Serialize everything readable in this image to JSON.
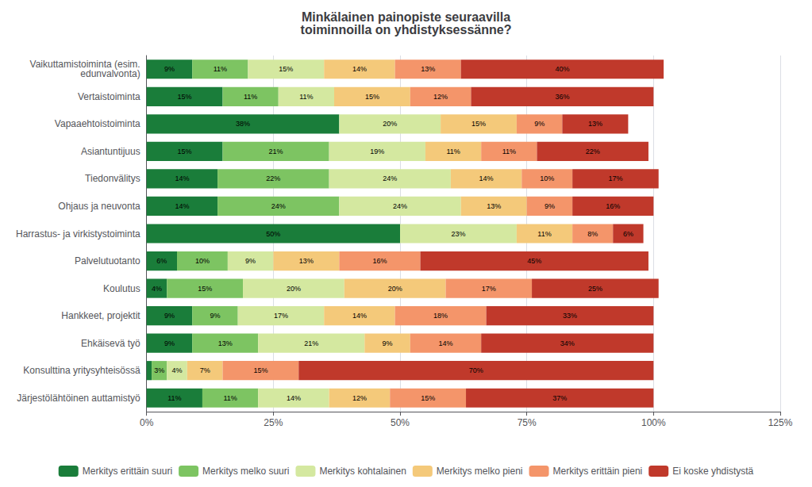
{
  "chart_data": {
    "type": "bar",
    "orientation": "horizontal",
    "stacked": true,
    "data_labels": true,
    "grid": true,
    "legend": "bottom",
    "title": "Minkälainen painopiste seuraavilla\ntoiminnoilla on yhdistyksessänne?",
    "categories": [
      "Järjestölähtöinen auttamistyö",
      "Konsulttina yritysyhteisössä",
      "Ehkäisevä työ",
      "Hankkeet, projektit",
      "Koulutus",
      "Palvelutuotanto",
      "Harrastus- ja virkistystoiminta",
      "Ohjaus ja neuvonta",
      "Tiedonvälitys",
      "Asiantuntijuus",
      "Vapaaehtoistoiminta",
      "Vertaistoiminta",
      "Vaikuttamistoiminta (esim.\n edunvalvonta)"
    ],
    "series": [
      {
        "name": "Merkitys erittäin suuri",
        "color": "#1a7d3a",
        "values": [
          11,
          1,
          9,
          9,
          4,
          6,
          50,
          14,
          14,
          15,
          38,
          15,
          9
        ],
        "value_labels": [
          "11%",
          null,
          "9%",
          "9%",
          "4%",
          "6%",
          "50%",
          "14%",
          "14%",
          "15%",
          "38%",
          "15%",
          "9%"
        ]
      },
      {
        "name": "Merkitys melko suuri",
        "color": "#7dc462",
        "values": [
          11,
          3,
          13,
          9,
          15,
          10,
          0,
          24,
          22,
          21,
          0,
          11,
          11
        ],
        "value_labels": [
          "11%",
          "3%",
          "13%",
          "9%",
          "15%",
          "10%",
          null,
          "24%",
          "22%",
          "21%",
          null,
          "11%",
          "11%"
        ]
      },
      {
        "name": "Merkitys kohtalainen",
        "color": "#d4e8a0",
        "values": [
          14,
          4,
          21,
          17,
          20,
          9,
          23,
          24,
          24,
          19,
          20,
          11,
          15
        ],
        "value_labels": [
          "14%",
          "4%",
          "21%",
          "17%",
          "20%",
          "9%",
          "23%",
          "24%",
          "24%",
          "19%",
          "20%",
          "11%",
          "15%"
        ]
      },
      {
        "name": "Merkitys melko pieni",
        "color": "#f4c97a",
        "values": [
          12,
          7,
          9,
          14,
          20,
          13,
          11,
          13,
          14,
          11,
          15,
          15,
          14
        ],
        "value_labels": [
          "12%",
          "7%",
          "9%",
          "14%",
          "20%",
          "13%",
          "11%",
          "13%",
          "14%",
          "11%",
          "15%",
          "15%",
          "14%"
        ]
      },
      {
        "name": "Merkitys erittäin pieni",
        "color": "#f4956a",
        "values": [
          15,
          15,
          14,
          18,
          17,
          16,
          8,
          9,
          10,
          11,
          9,
          12,
          13
        ],
        "value_labels": [
          "15%",
          "15%",
          "14%",
          "18%",
          "17%",
          "16%",
          "8%",
          "9%",
          "10%",
          "11%",
          "9%",
          "12%",
          "13%"
        ]
      },
      {
        "name": "Ei koske yhdistystä",
        "color": "#c0392b",
        "values": [
          37,
          70,
          34,
          33,
          25,
          45,
          6,
          16,
          17,
          22,
          13,
          36,
          40
        ],
        "value_labels": [
          "37%",
          "70%",
          "34%",
          "33%",
          "25%",
          "45%",
          "6%",
          "16%",
          "17%",
          "22%",
          "13%",
          "36%",
          "40%"
        ]
      }
    ],
    "xlim": [
      0,
      125
    ],
    "xticks": [
      {
        "value": 0,
        "label": "0%"
      },
      {
        "value": 25,
        "label": "25%"
      },
      {
        "value": 50,
        "label": "50%"
      },
      {
        "value": 75,
        "label": "75%"
      },
      {
        "value": 100,
        "label": "100%"
      },
      {
        "value": 125,
        "label": "125%"
      }
    ]
  }
}
